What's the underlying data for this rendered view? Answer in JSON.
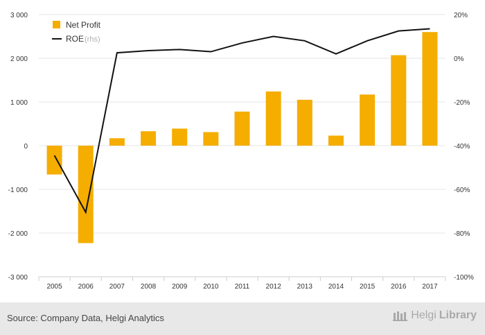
{
  "chart_data": {
    "type": "bar",
    "categories": [
      "2005",
      "2006",
      "2007",
      "2008",
      "2009",
      "2010",
      "2011",
      "2012",
      "2013",
      "2014",
      "2015",
      "2016",
      "2017"
    ],
    "series": [
      {
        "name": "Net Profit",
        "type": "bar",
        "axis": "left",
        "color": "#f5ad00",
        "values": [
          -660,
          -2230,
          170,
          330,
          390,
          310,
          780,
          1240,
          1050,
          230,
          1170,
          2070,
          2600
        ]
      },
      {
        "name": "ROE",
        "type": "line",
        "axis": "right",
        "color": "#111111",
        "values": [
          -44.5,
          -70.5,
          2.5,
          3.5,
          4,
          3,
          7,
          10,
          8,
          2,
          8,
          12.5,
          13.5
        ]
      }
    ],
    "legend": {
      "items": [
        {
          "label": "Net Profit",
          "suffix": ""
        },
        {
          "label": "ROE",
          "suffix": "(rhs)"
        }
      ],
      "position": "top-left"
    },
    "y_left": {
      "ylim": [
        -3000,
        3000
      ],
      "ticks": [
        -3000,
        -2000,
        -1000,
        0,
        1000,
        2000,
        3000
      ],
      "tick_labels": [
        "-3 000",
        "-2 000",
        "-1 000",
        "0",
        "1 000",
        "2 000",
        "3 000"
      ]
    },
    "y_right": {
      "ylim": [
        -100,
        20
      ],
      "ticks": [
        -100,
        -80,
        -60,
        -40,
        -20,
        0,
        20
      ],
      "tick_labels": [
        "-100%",
        "-80%",
        "-60%",
        "-40%",
        "-20%",
        "0%",
        "20%"
      ]
    },
    "grid": true,
    "colors": {
      "bar": "#f5ad00",
      "line": "#111111",
      "left_tick": "#f5ad00",
      "right_tick": "#222222"
    }
  },
  "footer": {
    "source": "Source: Company Data, Helgi Analytics",
    "brand_regular": "Helgi",
    "brand_bold": "Library"
  }
}
